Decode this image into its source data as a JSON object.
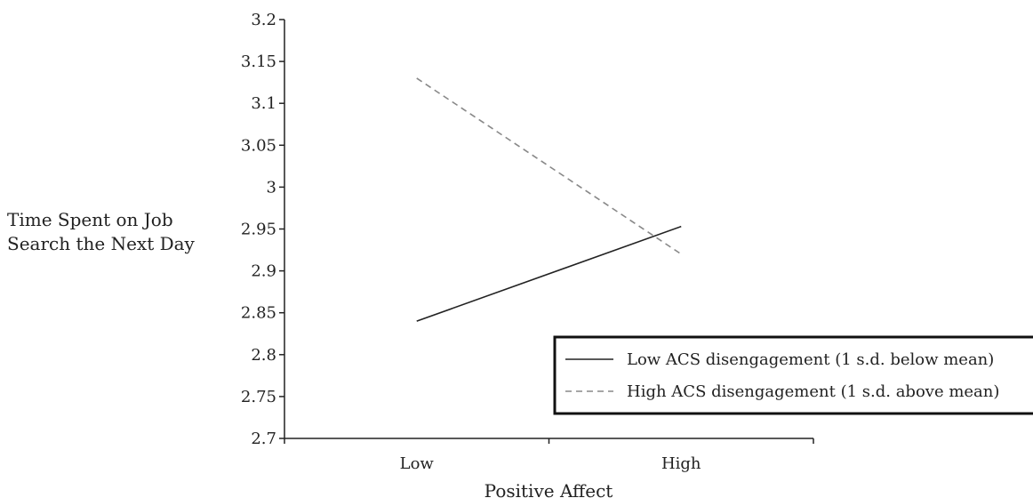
{
  "chart_data": {
    "type": "line",
    "categories": [
      "Low",
      "High"
    ],
    "series": [
      {
        "name": "Low ACS disengagement (1 s.d. below mean)",
        "values": [
          2.84,
          2.953
        ],
        "color": "#222222",
        "dash": "solid"
      },
      {
        "name": "High ACS disengagement (1 s.d. above mean)",
        "values": [
          3.13,
          2.92
        ],
        "color": "#888888",
        "dash": "dashed"
      }
    ],
    "ylim": [
      2.7,
      3.2
    ],
    "yticks": [
      "2.7",
      "2.75",
      "2.8",
      "2.85",
      "2.9",
      "2.95",
      "3",
      "3.05",
      "3.1",
      "3.15",
      "3.2"
    ],
    "ylabel_lines": [
      "Time Spent on Job",
      "Search the Next Day"
    ],
    "xlabel": "Positive Affect",
    "grid": false,
    "legend_position": "bottom-right"
  }
}
